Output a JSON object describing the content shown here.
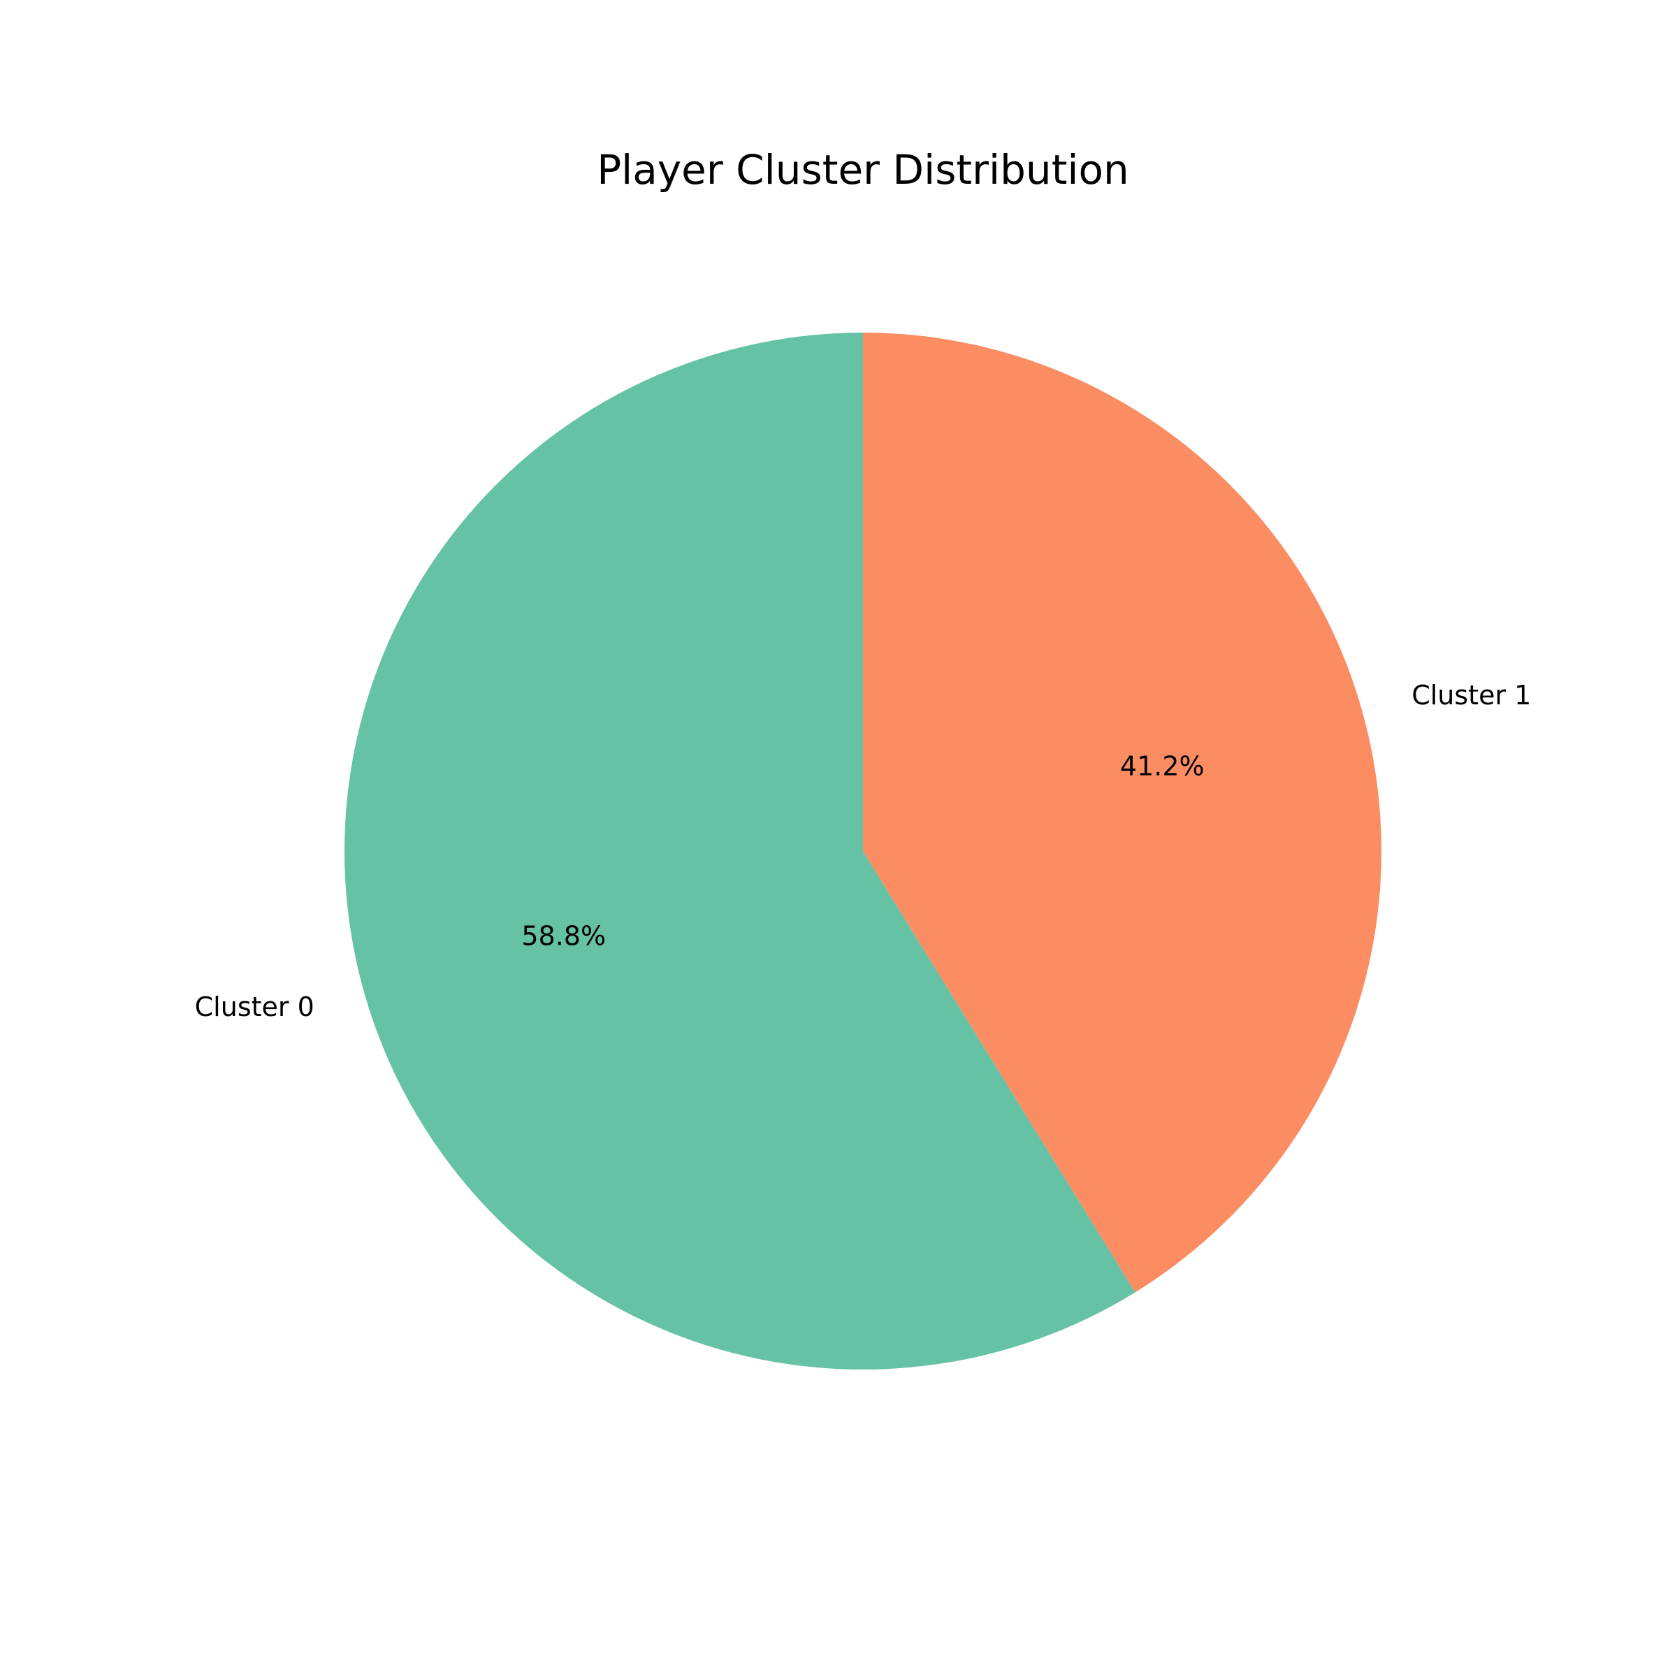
{
  "chart_data": {
    "type": "pie",
    "title": "Player Cluster Distribution",
    "labels": [
      "Cluster 0",
      "Cluster 1"
    ],
    "values": [
      58.8,
      41.2
    ],
    "percent_labels": [
      "58.8%",
      "41.2%"
    ],
    "colors": [
      "#66c2a5",
      "#fc8d62"
    ],
    "start_angle_deg": 90,
    "direction": "counterclockwise",
    "legend": "none"
  }
}
